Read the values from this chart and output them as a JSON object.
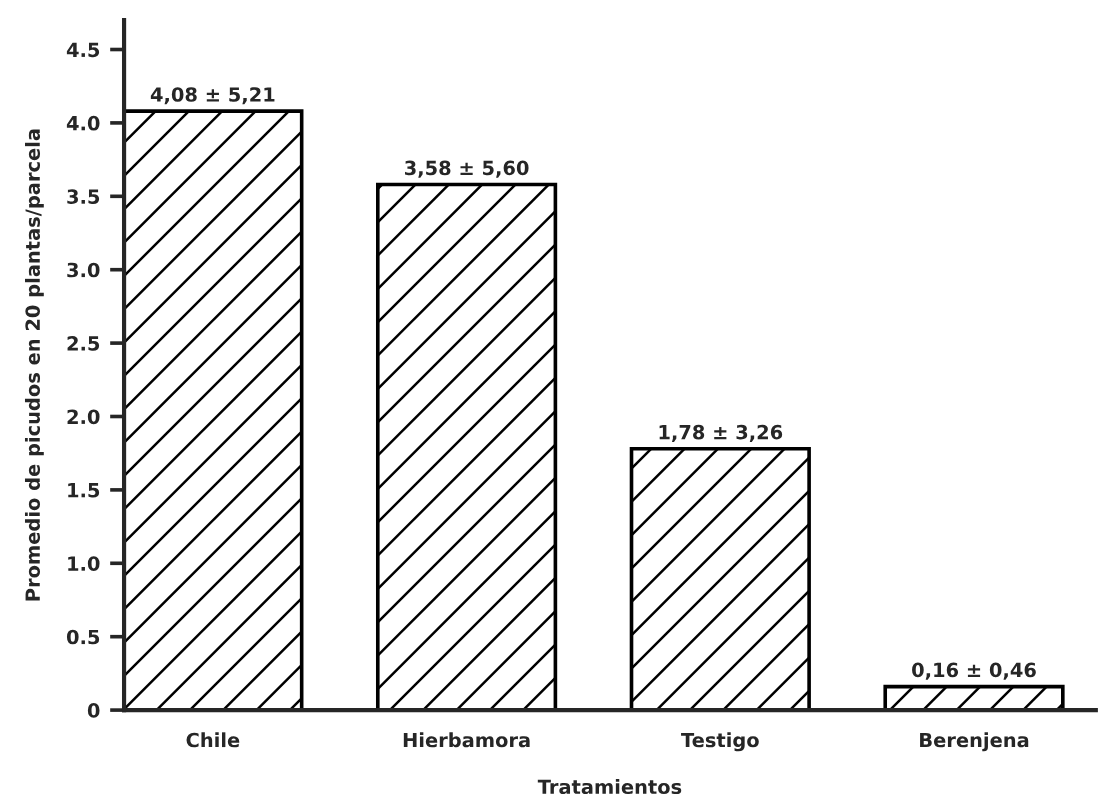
{
  "chart_data": {
    "type": "bar",
    "xlabel": "Tratamientos",
    "ylabel": "Promedio de picudos en 20 plantas/parcela",
    "categories": [
      "Chile",
      "Hierbamora",
      "Testigo",
      "Berenjena"
    ],
    "values": [
      4.08,
      3.58,
      1.78,
      0.16
    ],
    "value_labels": [
      "4,08 ± 5,21",
      "3,58 ± 5,60",
      "1,78 ± 3,26",
      "0,16 ± 0,46"
    ],
    "color": "#000000",
    "ylim": [
      0,
      4.7
    ],
    "yticks": [
      0,
      {
        "value": 0.5,
        "label": "0.5"
      },
      {
        "value": 1,
        "label": "1.0"
      },
      {
        "value": 1.5,
        "label": "1.5"
      },
      {
        "value": 2,
        "label": "2.0"
      },
      {
        "value": 2.5,
        "label": "2.5"
      },
      {
        "value": 3,
        "label": "3.0"
      },
      {
        "value": 3.5,
        "label": "3.5"
      },
      {
        "value": 4,
        "label": "4.0"
      },
      {
        "value": 4.5,
        "label": "4.5"
      }
    ],
    "grid": false,
    "legend": false
  }
}
